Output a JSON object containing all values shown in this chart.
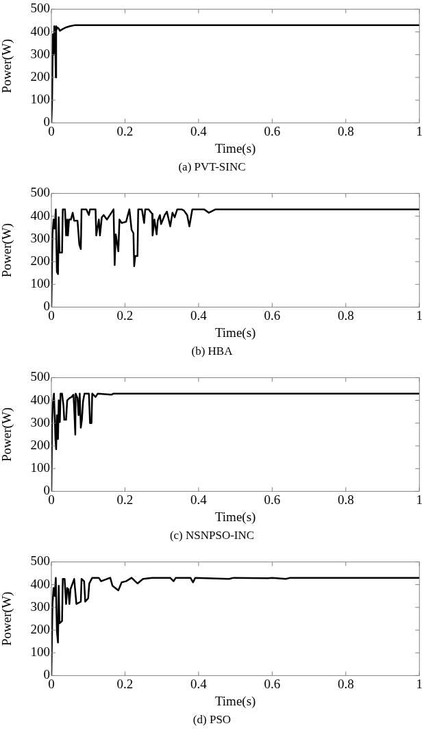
{
  "chart_data": [
    {
      "type": "line",
      "title": "(a)  PVT-SINC",
      "xlabel": "Time(s)",
      "ylabel": "Power(W)",
      "xlim": [
        0,
        1
      ],
      "xticks": [
        0,
        0.2,
        0.4,
        0.6,
        0.8,
        1
      ],
      "ylim": [
        0,
        500
      ],
      "yticks": [
        0,
        100,
        200,
        300,
        400,
        500
      ],
      "grid": false,
      "legend": false,
      "marker": "none",
      "line_style": "solid",
      "series": [
        {
          "color": "#000000",
          "x": [
            0,
            0.002,
            0.004,
            0.006,
            0.008,
            0.01,
            0.012,
            0.013,
            0.014,
            0.016,
            0.02,
            0.023,
            0.03,
            0.04,
            0.05,
            0.065,
            1
          ],
          "values": [
            0,
            100,
            390,
            300,
            425,
            400,
            200,
            425,
            410,
            420,
            415,
            405,
            412,
            420,
            425,
            430,
            430
          ]
        }
      ]
    },
    {
      "type": "line",
      "title": "(b)  HBA",
      "xlabel": "Time(s)",
      "ylabel": "Power(W)",
      "xlim": [
        0,
        1
      ],
      "xticks": [
        0,
        0.2,
        0.4,
        0.6,
        0.8,
        1
      ],
      "ylim": [
        0,
        500
      ],
      "yticks": [
        0,
        100,
        200,
        300,
        400,
        500
      ],
      "grid": false,
      "legend": false,
      "marker": "none",
      "line_style": "solid",
      "series": [
        {
          "color": "#000000",
          "x": [
            0,
            0.003,
            0.006,
            0.009,
            0.012,
            0.015,
            0.018,
            0.02,
            0.022,
            0.029,
            0.031,
            0.037,
            0.04,
            0.043,
            0.045,
            0.048,
            0.053,
            0.058,
            0.062,
            0.071,
            0.076,
            0.08,
            0.082,
            0.095,
            0.102,
            0.105,
            0.12,
            0.122,
            0.129,
            0.132,
            0.137,
            0.142,
            0.151,
            0.169,
            0.172,
            0.175,
            0.182,
            0.185,
            0.191,
            0.203,
            0.212,
            0.218,
            0.223,
            0.225,
            0.228,
            0.234,
            0.236,
            0.246,
            0.252,
            0.255,
            0.264,
            0.274,
            0.275,
            0.28,
            0.286,
            0.289,
            0.295,
            0.298,
            0.308,
            0.314,
            0.323,
            0.329,
            0.335,
            0.342,
            0.354,
            0.36,
            0.369,
            0.375,
            0.383,
            0.403,
            0.415,
            0.428,
            0.446,
            1
          ],
          "values": [
            0,
            320,
            385,
            345,
            430,
            155,
            145,
            395,
            240,
            240,
            430,
            430,
            315,
            385,
            315,
            385,
            385,
            415,
            380,
            380,
            275,
            255,
            430,
            430,
            405,
            430,
            430,
            315,
            385,
            315,
            395,
            405,
            385,
            430,
            185,
            320,
            245,
            385,
            370,
            375,
            430,
            340,
            325,
            180,
            225,
            225,
            430,
            430,
            370,
            430,
            430,
            410,
            315,
            385,
            320,
            380,
            405,
            365,
            405,
            420,
            355,
            415,
            395,
            430,
            430,
            425,
            405,
            355,
            430,
            430,
            430,
            415,
            430,
            430
          ]
        }
      ]
    },
    {
      "type": "line",
      "title": "(c)  NSNPSO-INC",
      "xlabel": "Time(s)",
      "ylabel": "Power(W)",
      "xlim": [
        0,
        1
      ],
      "xticks": [
        0,
        0.2,
        0.4,
        0.6,
        0.8,
        1
      ],
      "ylim": [
        0,
        500
      ],
      "yticks": [
        0,
        100,
        200,
        300,
        400,
        500
      ],
      "grid": false,
      "legend": false,
      "marker": "none",
      "line_style": "solid",
      "series": [
        {
          "color": "#000000",
          "x": [
            0,
            0.002,
            0.004,
            0.007,
            0.009,
            0.011,
            0.013,
            0.015,
            0.018,
            0.02,
            0.023,
            0.025,
            0.029,
            0.033,
            0.035,
            0.04,
            0.043,
            0.049,
            0.055,
            0.06,
            0.062,
            0.065,
            0.066,
            0.071,
            0.074,
            0.077,
            0.08,
            0.083,
            0.086,
            0.09,
            0.102,
            0.105,
            0.109,
            0.111,
            0.12,
            0.126,
            0.163,
            0.169,
            1
          ],
          "values": [
            0,
            310,
            385,
            430,
            335,
            230,
            185,
            335,
            230,
            400,
            305,
            430,
            430,
            375,
            315,
            315,
            400,
            410,
            415,
            425,
            365,
            250,
            430,
            410,
            335,
            430,
            280,
            315,
            395,
            430,
            430,
            300,
            300,
            430,
            415,
            430,
            425,
            430,
            430
          ]
        }
      ]
    },
    {
      "type": "line",
      "title": "(d)  PSO",
      "xlabel": "Time(s)",
      "ylabel": "Power(W)",
      "xlim": [
        0,
        1
      ],
      "xticks": [
        0,
        0.2,
        0.4,
        0.6,
        0.8,
        1
      ],
      "ylim": [
        0,
        500
      ],
      "yticks": [
        0,
        100,
        200,
        300,
        400,
        500
      ],
      "grid": false,
      "legend": false,
      "marker": "none",
      "line_style": "solid",
      "series": [
        {
          "color": "#000000",
          "x": [
            0,
            0.003,
            0.006,
            0.009,
            0.012,
            0.015,
            0.018,
            0.02,
            0.022,
            0.029,
            0.031,
            0.036,
            0.04,
            0.043,
            0.046,
            0.049,
            0.052,
            0.062,
            0.068,
            0.08,
            0.082,
            0.089,
            0.092,
            0.1,
            0.103,
            0.111,
            0.129,
            0.135,
            0.151,
            0.16,
            0.166,
            0.182,
            0.191,
            0.203,
            0.218,
            0.234,
            0.249,
            0.274,
            0.323,
            0.332,
            0.338,
            0.378,
            0.385,
            0.391,
            0.483,
            0.495,
            0.588,
            0.6,
            0.637,
            0.649,
            1
          ],
          "values": [
            0,
            315,
            385,
            350,
            430,
            195,
            145,
            395,
            230,
            240,
            425,
            425,
            315,
            385,
            380,
            315,
            380,
            425,
            315,
            325,
            425,
            415,
            325,
            340,
            405,
            430,
            430,
            415,
            425,
            430,
            395,
            375,
            410,
            415,
            430,
            405,
            425,
            430,
            430,
            415,
            430,
            430,
            410,
            430,
            425,
            430,
            428,
            430,
            425,
            430,
            430
          ]
        }
      ]
    }
  ]
}
